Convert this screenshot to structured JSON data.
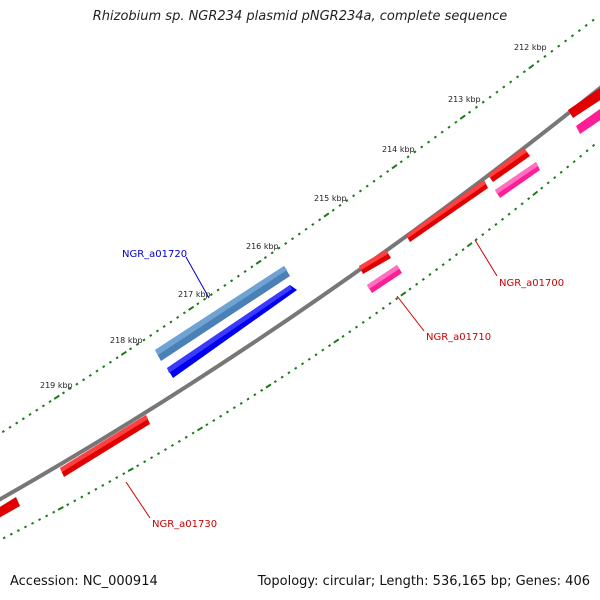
{
  "title": "Rhizobium sp. NGR234 plasmid pNGR234a, complete sequence",
  "footer": {
    "accession": "Accession: NC_000914",
    "summary": "Topology: circular; Length: 536,165 bp; Genes: 406"
  },
  "ticks": [
    "212 kbp",
    "213 kbp",
    "214 kbp",
    "215 kbp",
    "216 kbp",
    "217 kbp",
    "218 kbp",
    "219 kbp"
  ],
  "genes": [
    {
      "label": "NGR_a01720",
      "strand": "forward",
      "color": "#0000cc"
    },
    {
      "label": "NGR_a01700",
      "strand": "reverse",
      "color": "#cc0000"
    },
    {
      "label": "NGR_a01710",
      "strand": "reverse",
      "color": "#cc0000"
    },
    {
      "label": "NGR_a01730",
      "strand": "reverse",
      "color": "#cc0000"
    }
  ],
  "colors": {
    "backbone": "#777777",
    "tick": "#1a7a1a",
    "cds_red": "#ff0000",
    "cds_pink": "#ff2fa8",
    "cds_blue": "#0000ee",
    "cds_steelblue": "#4682b4"
  }
}
